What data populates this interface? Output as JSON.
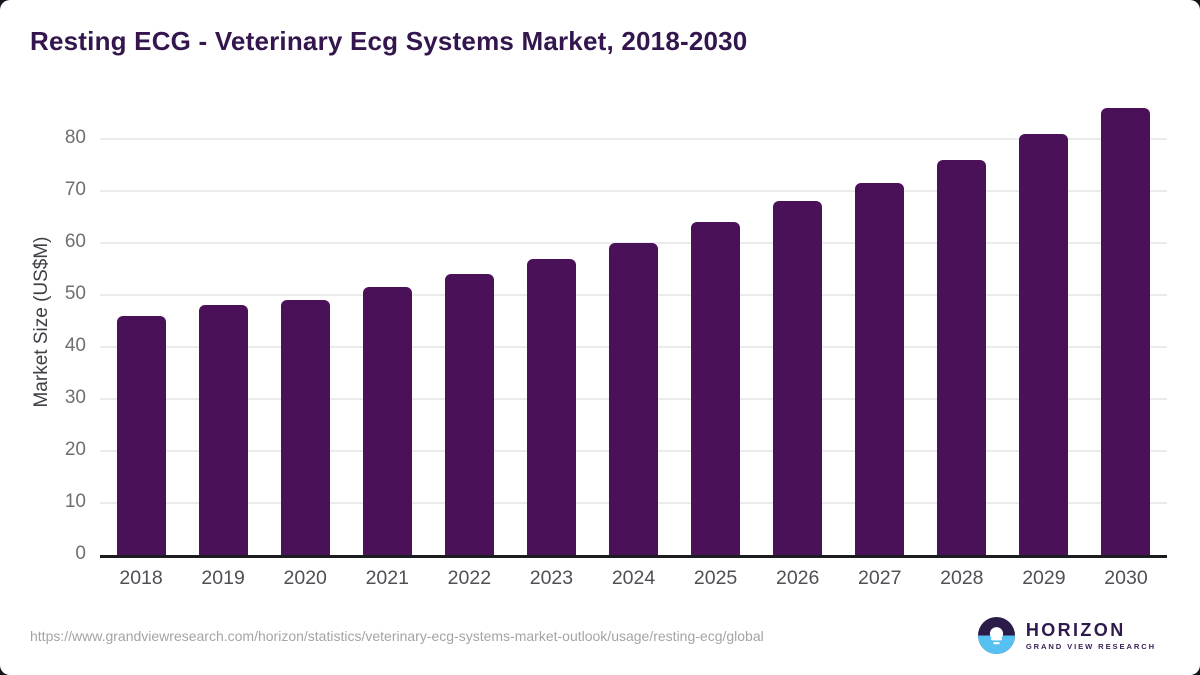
{
  "header": {
    "title": "Resting ECG - Veterinary Ecg Systems Market, 2018-2030"
  },
  "chart_data": {
    "type": "bar",
    "title": "Resting ECG - Veterinary Ecg Systems Market, 2018-2030",
    "categories": [
      "2018",
      "2019",
      "2020",
      "2021",
      "2022",
      "2023",
      "2024",
      "2025",
      "2026",
      "2027",
      "2028",
      "2029",
      "2030"
    ],
    "values": [
      46,
      48,
      49,
      51.5,
      54,
      57,
      60,
      64,
      68,
      71.5,
      76,
      81,
      86
    ],
    "xlabel": "",
    "ylabel": "Market Size (US$M)",
    "ylim": [
      0,
      88
    ],
    "yticks": [
      0,
      10,
      20,
      30,
      40,
      50,
      60,
      70,
      80
    ],
    "grid": "horizontal",
    "legend": "none",
    "bar_color": "#4a1158"
  },
  "footer": {
    "source_url": "https://www.grandviewresearch.com/horizon/statistics/veterinary-ecg-systems-market-outlook/usage/resting-ecg/global",
    "logo": {
      "name": "HORIZON",
      "subtitle": "GRAND VIEW RESEARCH",
      "mark_top_color": "#2b1b49",
      "mark_bottom_color": "#56c1f1"
    }
  },
  "colors": {
    "title_text": "#32164d",
    "bar": "#4a1158",
    "gridline": "#ebebeb",
    "axis_line": "#1b1c20",
    "tick_text": "#6f6f6f",
    "xlabel_text": "#4e5056",
    "url_text": "#a4a4a4",
    "background": "#ffffff"
  }
}
